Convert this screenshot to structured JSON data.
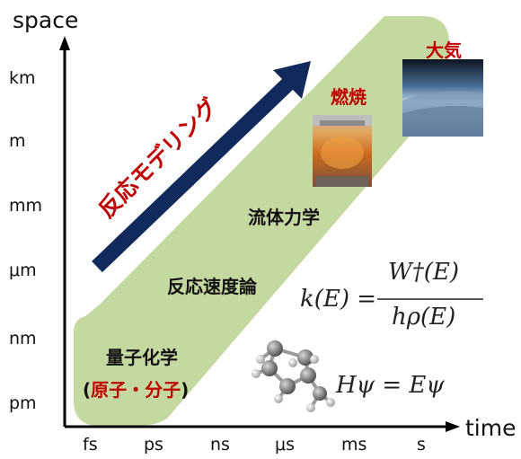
{
  "axes": {
    "y_title": "space",
    "x_title": "time",
    "y_ticks": [
      "km",
      "m",
      "mm",
      "μm",
      "nm",
      "pm"
    ],
    "x_ticks": [
      "fs",
      "ps",
      "ns",
      "μs",
      "ms",
      "s"
    ]
  },
  "arrow_label": "反応モデリング",
  "labels": {
    "fluid": "流体力学",
    "kinetics": "反応速度論",
    "quantum": "量子化学",
    "atoms": "原子・分子",
    "paren_open": "(",
    "paren_close": ")",
    "combustion": "燃焼",
    "atmosphere": "大気"
  },
  "equations": {
    "rate_lhs": "k(E) =",
    "rate_num": "W†(E)",
    "rate_den": "hρ(E)",
    "schrodinger": "Hψ = Eψ"
  },
  "colors": {
    "band": "#c4d9a0",
    "arrow": "#102a5c",
    "accent_red": "#c00000",
    "axis": "#000000"
  }
}
